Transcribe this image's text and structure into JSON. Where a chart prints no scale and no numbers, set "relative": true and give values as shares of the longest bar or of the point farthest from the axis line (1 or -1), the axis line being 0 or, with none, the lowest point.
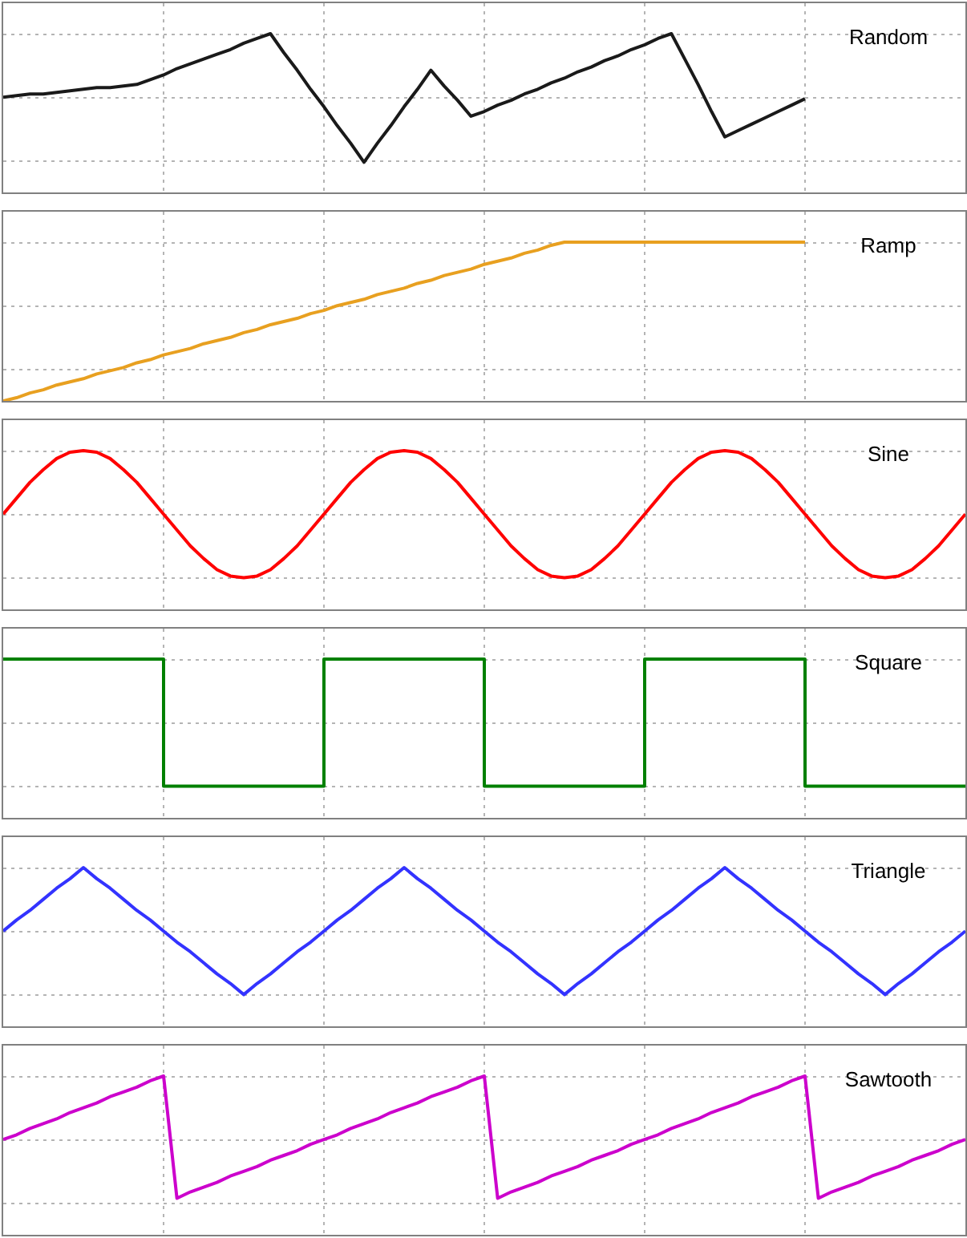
{
  "chart_data": [
    {
      "type": "line",
      "title": "Random",
      "relative": true,
      "grid": true,
      "categories": [
        null,
        null,
        null,
        null,
        null,
        null,
        null,
        null,
        null,
        null,
        null,
        null,
        null,
        null,
        null,
        null,
        null,
        null,
        null,
        null,
        null,
        null,
        null,
        null,
        null,
        null,
        null,
        null,
        null,
        null,
        null,
        null,
        null,
        null,
        null,
        null,
        null,
        null,
        null,
        null,
        null,
        null,
        null,
        null,
        null,
        null,
        null,
        null,
        null,
        null,
        null,
        null,
        null,
        null,
        null,
        null,
        null,
        null,
        null,
        null,
        null,
        null,
        null,
        null,
        null,
        null,
        null,
        null,
        null,
        null,
        null,
        null,
        null
      ],
      "series": [
        {
          "color": "#1a1a1a",
          "values": [
            0.6,
            0.61,
            0.62,
            0.62,
            0.63,
            0.64,
            0.65,
            0.66,
            0.66,
            0.67,
            0.68,
            0.71,
            0.74,
            0.78,
            0.81,
            0.84,
            0.87,
            0.9,
            0.94,
            0.97,
            1,
            0.88,
            0.77,
            0.65,
            0.54,
            0.42,
            0.31,
            0.19,
            0.31,
            0.42,
            0.54,
            0.65,
            0.77,
            0.67,
            0.58,
            0.48,
            0.51,
            0.55,
            0.58,
            0.62,
            0.65,
            0.69,
            0.72,
            0.76,
            0.79,
            0.83,
            0.86,
            0.9,
            0.93,
            0.97,
            1,
            0.84,
            0.68,
            0.51,
            0.35,
            0.39,
            0.43,
            0.47,
            0.51,
            0.55,
            0.59,
            null,
            null,
            null,
            null,
            null,
            null,
            null,
            null,
            null,
            null,
            null,
            null
          ]
        }
      ]
    },
    {
      "type": "line",
      "title": "Ramp",
      "relative": true,
      "grid": true,
      "categories": [
        null,
        null,
        null,
        null,
        null,
        null,
        null,
        null,
        null,
        null,
        null,
        null,
        null,
        null,
        null,
        null,
        null,
        null,
        null,
        null,
        null,
        null,
        null,
        null,
        null,
        null,
        null,
        null,
        null,
        null,
        null,
        null,
        null,
        null,
        null,
        null,
        null,
        null,
        null,
        null,
        null,
        null,
        null,
        null,
        null,
        null,
        null,
        null,
        null,
        null,
        null,
        null,
        null,
        null,
        null,
        null,
        null,
        null,
        null,
        null,
        null,
        null,
        null,
        null,
        null,
        null,
        null,
        null,
        null,
        null,
        null,
        null,
        null
      ],
      "series": [
        {
          "color": "#e8a020",
          "values": [
            0,
            0.02,
            0.05,
            0.07,
            0.1,
            0.12,
            0.14,
            0.17,
            0.19,
            0.21,
            0.24,
            0.26,
            0.29,
            0.31,
            0.33,
            0.36,
            0.38,
            0.4,
            0.43,
            0.45,
            0.48,
            0.5,
            0.52,
            0.55,
            0.57,
            0.6,
            0.62,
            0.64,
            0.67,
            0.69,
            0.71,
            0.74,
            0.76,
            0.79,
            0.81,
            0.83,
            0.86,
            0.88,
            0.9,
            0.93,
            0.95,
            0.98,
            1,
            1,
            1,
            1,
            1,
            1,
            1,
            1,
            1,
            1,
            1,
            1,
            1,
            1,
            1,
            1,
            1,
            1,
            1,
            null,
            null,
            null,
            null,
            null,
            null,
            null,
            null,
            null,
            null,
            null,
            null
          ]
        }
      ]
    },
    {
      "type": "line",
      "title": "Sine",
      "relative": true,
      "grid": true,
      "categories": [
        null,
        null,
        null,
        null,
        null,
        null,
        null,
        null,
        null,
        null,
        null,
        null,
        null,
        null,
        null,
        null,
        null,
        null,
        null,
        null,
        null,
        null,
        null,
        null,
        null,
        null,
        null,
        null,
        null,
        null,
        null,
        null,
        null,
        null,
        null,
        null,
        null,
        null,
        null,
        null,
        null,
        null,
        null,
        null,
        null,
        null,
        null,
        null,
        null,
        null,
        null,
        null,
        null,
        null,
        null,
        null,
        null,
        null,
        null,
        null,
        null,
        null,
        null,
        null,
        null,
        null,
        null,
        null,
        null,
        null,
        null,
        null,
        null
      ],
      "series": [
        {
          "color": "#ff0000",
          "values": [
            0.6,
            0.7,
            0.8,
            0.88,
            0.95,
            0.99,
            1,
            0.99,
            0.95,
            0.88,
            0.8,
            0.7,
            0.6,
            0.5,
            0.4,
            0.32,
            0.25,
            0.21,
            0.2,
            0.21,
            0.25,
            0.32,
            0.4,
            0.5,
            0.6,
            0.7,
            0.8,
            0.88,
            0.95,
            0.99,
            1,
            0.99,
            0.95,
            0.88,
            0.8,
            0.7,
            0.6,
            0.5,
            0.4,
            0.32,
            0.25,
            0.21,
            0.2,
            0.21,
            0.25,
            0.32,
            0.4,
            0.5,
            0.6,
            0.7,
            0.8,
            0.88,
            0.95,
            0.99,
            1,
            0.99,
            0.95,
            0.88,
            0.8,
            0.7,
            0.6,
            0.5,
            0.4,
            0.32,
            0.25,
            0.21,
            0.2,
            0.21,
            0.25,
            0.32,
            0.4,
            0.5,
            0.6
          ]
        }
      ]
    },
    {
      "type": "step",
      "title": "Square",
      "relative": true,
      "grid": true,
      "categories": [
        null,
        null,
        null,
        null,
        null,
        null,
        null,
        null,
        null,
        null,
        null,
        null,
        null,
        null,
        null,
        null,
        null,
        null,
        null,
        null,
        null,
        null,
        null,
        null,
        null,
        null,
        null,
        null,
        null,
        null,
        null,
        null,
        null,
        null,
        null,
        null,
        null,
        null,
        null,
        null,
        null,
        null,
        null,
        null,
        null,
        null,
        null,
        null,
        null,
        null,
        null,
        null,
        null,
        null,
        null,
        null,
        null,
        null,
        null,
        null,
        null,
        null,
        null,
        null,
        null,
        null,
        null,
        null,
        null,
        null,
        null,
        null,
        null
      ],
      "series": [
        {
          "color": "#008000",
          "values": [
            1,
            1,
            1,
            1,
            1,
            1,
            1,
            1,
            1,
            1,
            1,
            1,
            0.2,
            0.2,
            0.2,
            0.2,
            0.2,
            0.2,
            0.2,
            0.2,
            0.2,
            0.2,
            0.2,
            0.2,
            1,
            1,
            1,
            1,
            1,
            1,
            1,
            1,
            1,
            1,
            1,
            1,
            0.2,
            0.2,
            0.2,
            0.2,
            0.2,
            0.2,
            0.2,
            0.2,
            0.2,
            0.2,
            0.2,
            0.2,
            1,
            1,
            1,
            1,
            1,
            1,
            1,
            1,
            1,
            1,
            1,
            1,
            0.2,
            0.2,
            0.2,
            0.2,
            0.2,
            0.2,
            0.2,
            0.2,
            0.2,
            0.2,
            0.2,
            0.2,
            0.2
          ]
        }
      ]
    },
    {
      "type": "line",
      "title": "Triangle",
      "relative": true,
      "grid": true,
      "categories": [
        null,
        null,
        null,
        null,
        null,
        null,
        null,
        null,
        null,
        null,
        null,
        null,
        null,
        null,
        null,
        null,
        null,
        null,
        null,
        null,
        null,
        null,
        null,
        null,
        null,
        null,
        null,
        null,
        null,
        null,
        null,
        null,
        null,
        null,
        null,
        null,
        null,
        null,
        null,
        null,
        null,
        null,
        null,
        null,
        null,
        null,
        null,
        null,
        null,
        null,
        null,
        null,
        null,
        null,
        null,
        null,
        null,
        null,
        null,
        null,
        null,
        null,
        null,
        null,
        null,
        null,
        null,
        null,
        null,
        null,
        null,
        null,
        null
      ],
      "series": [
        {
          "color": "#3333ff",
          "values": [
            0.6,
            0.67,
            0.73,
            0.8,
            0.87,
            0.93,
            1,
            0.93,
            0.87,
            0.8,
            0.73,
            0.67,
            0.6,
            0.53,
            0.47,
            0.4,
            0.33,
            0.27,
            0.2,
            0.27,
            0.33,
            0.4,
            0.47,
            0.53,
            0.6,
            0.67,
            0.73,
            0.8,
            0.87,
            0.93,
            1,
            0.93,
            0.87,
            0.8,
            0.73,
            0.67,
            0.6,
            0.53,
            0.47,
            0.4,
            0.33,
            0.27,
            0.2,
            0.27,
            0.33,
            0.4,
            0.47,
            0.53,
            0.6,
            0.67,
            0.73,
            0.8,
            0.87,
            0.93,
            1,
            0.93,
            0.87,
            0.8,
            0.73,
            0.67,
            0.6,
            0.53,
            0.47,
            0.4,
            0.33,
            0.27,
            0.2,
            0.27,
            0.33,
            0.4,
            0.47,
            0.53,
            0.6
          ]
        }
      ]
    },
    {
      "type": "line",
      "title": "Sawtooth",
      "relative": true,
      "grid": true,
      "categories": [
        null,
        null,
        null,
        null,
        null,
        null,
        null,
        null,
        null,
        null,
        null,
        null,
        null,
        null,
        null,
        null,
        null,
        null,
        null,
        null,
        null,
        null,
        null,
        null,
        null,
        null,
        null,
        null,
        null,
        null,
        null,
        null,
        null,
        null,
        null,
        null,
        null,
        null,
        null,
        null,
        null,
        null,
        null,
        null,
        null,
        null,
        null,
        null,
        null,
        null,
        null,
        null,
        null,
        null,
        null,
        null,
        null,
        null,
        null,
        null,
        null,
        null,
        null,
        null,
        null,
        null,
        null,
        null,
        null,
        null,
        null,
        null,
        null
      ],
      "series": [
        {
          "color": "#cc00cc",
          "values": [
            0.6,
            0.63,
            0.67,
            0.7,
            0.73,
            0.77,
            0.8,
            0.83,
            0.87,
            0.9,
            0.93,
            0.97,
            1,
            0.23,
            0.27,
            0.3,
            0.33,
            0.37,
            0.4,
            0.43,
            0.47,
            0.5,
            0.53,
            0.57,
            0.6,
            0.63,
            0.67,
            0.7,
            0.73,
            0.77,
            0.8,
            0.83,
            0.87,
            0.9,
            0.93,
            0.97,
            1,
            0.23,
            0.27,
            0.3,
            0.33,
            0.37,
            0.4,
            0.43,
            0.47,
            0.5,
            0.53,
            0.57,
            0.6,
            0.63,
            0.67,
            0.7,
            0.73,
            0.77,
            0.8,
            0.83,
            0.87,
            0.9,
            0.93,
            0.97,
            1,
            0.23,
            0.27,
            0.3,
            0.33,
            0.37,
            0.4,
            0.43,
            0.47,
            0.5,
            0.53,
            0.57,
            0.6
          ]
        }
      ]
    }
  ]
}
